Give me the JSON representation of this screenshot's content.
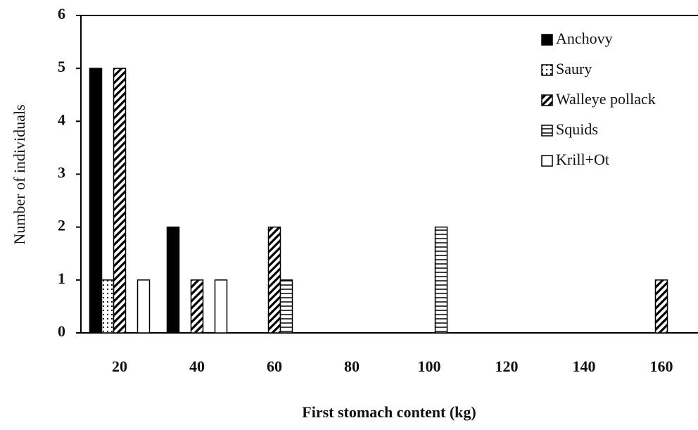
{
  "chart_data": {
    "type": "bar",
    "xlabel": "First stomach content (kg)",
    "ylabel": "Number of individuals",
    "categories": [
      "20",
      "40",
      "60",
      "80",
      "100",
      "120",
      "140",
      "160"
    ],
    "series": [
      {
        "name": "Anchovy",
        "color": "#000000",
        "pattern": "solid",
        "values": [
          5,
          2,
          0,
          0,
          0,
          0,
          0,
          0
        ]
      },
      {
        "name": "Saury",
        "color": "#000000",
        "pattern": "dots",
        "values": [
          1,
          0,
          0,
          0,
          0,
          0,
          0,
          0
        ]
      },
      {
        "name": "Walleye pollack",
        "color": "#000000",
        "pattern": "diagonal",
        "values": [
          5,
          1,
          2,
          0,
          0,
          0,
          0,
          1
        ]
      },
      {
        "name": "Squids",
        "color": "#000000",
        "pattern": "horizontal",
        "values": [
          0,
          0,
          1,
          0,
          2,
          0,
          0,
          0
        ]
      },
      {
        "name": "Krill+Ot",
        "color": "#000000",
        "pattern": "none",
        "values": [
          1,
          1,
          0,
          0,
          0,
          0,
          0,
          0
        ]
      }
    ],
    "ylim": [
      0,
      6
    ],
    "yticks": [
      0,
      1,
      2,
      3,
      4,
      5,
      6
    ],
    "grid": false,
    "legend": "top-right"
  }
}
